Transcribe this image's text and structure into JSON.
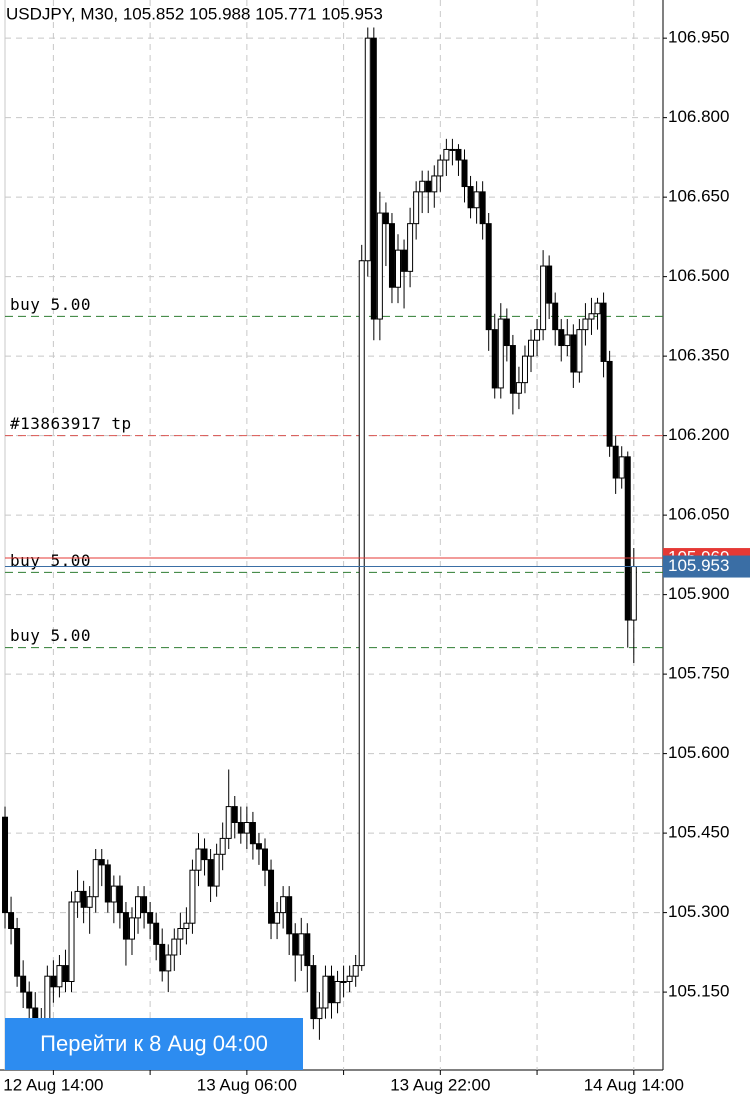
{
  "chart_data": {
    "type": "candlestick",
    "title": "USDJPY, M30, 105.852 105.988 105.771 105.953",
    "candles": [
      [
        105.48,
        105.5,
        105.27,
        105.3
      ],
      [
        105.3,
        105.33,
        105.24,
        105.27
      ],
      [
        105.27,
        105.29,
        105.16,
        105.18
      ],
      [
        105.18,
        105.21,
        105.12,
        105.15
      ],
      [
        105.15,
        105.17,
        105.09,
        105.12
      ],
      [
        105.12,
        105.15,
        105.05,
        105.07
      ],
      [
        105.07,
        105.12,
        105.04,
        105.09
      ],
      [
        105.09,
        105.2,
        105.07,
        105.18
      ],
      [
        105.18,
        105.21,
        105.13,
        105.16
      ],
      [
        105.16,
        105.22,
        105.14,
        105.2
      ],
      [
        105.2,
        105.23,
        105.15,
        105.17
      ],
      [
        105.17,
        105.34,
        105.15,
        105.32
      ],
      [
        105.32,
        105.38,
        105.29,
        105.34
      ],
      [
        105.34,
        105.36,
        105.28,
        105.31
      ],
      [
        105.31,
        105.35,
        105.26,
        105.33
      ],
      [
        105.33,
        105.42,
        105.3,
        105.4
      ],
      [
        105.4,
        105.42,
        105.35,
        105.39
      ],
      [
        105.39,
        105.4,
        105.3,
        105.32
      ],
      [
        105.32,
        105.37,
        105.28,
        105.35
      ],
      [
        105.35,
        105.37,
        105.27,
        105.3
      ],
      [
        105.3,
        105.32,
        105.2,
        105.25
      ],
      [
        105.25,
        105.31,
        105.22,
        105.29
      ],
      [
        105.29,
        105.35,
        105.26,
        105.33
      ],
      [
        105.33,
        105.35,
        105.27,
        105.3
      ],
      [
        105.3,
        105.32,
        105.25,
        105.28
      ],
      [
        105.28,
        105.3,
        105.21,
        105.24
      ],
      [
        105.24,
        105.27,
        105.17,
        105.19
      ],
      [
        105.19,
        105.24,
        105.15,
        105.22
      ],
      [
        105.22,
        105.27,
        105.19,
        105.25
      ],
      [
        105.25,
        105.3,
        105.22,
        105.27
      ],
      [
        105.27,
        105.31,
        105.24,
        105.28
      ],
      [
        105.28,
        105.4,
        105.26,
        105.38
      ],
      [
        105.38,
        105.45,
        105.35,
        105.42
      ],
      [
        105.42,
        105.44,
        105.37,
        105.4
      ],
      [
        105.4,
        105.42,
        105.32,
        105.35
      ],
      [
        105.35,
        105.43,
        105.33,
        105.41
      ],
      [
        105.41,
        105.47,
        105.38,
        105.44
      ],
      [
        105.44,
        105.57,
        105.42,
        105.5
      ],
      [
        105.5,
        105.52,
        105.44,
        105.47
      ],
      [
        105.47,
        105.5,
        105.43,
        105.45
      ],
      [
        105.45,
        105.5,
        105.42,
        105.47
      ],
      [
        105.47,
        105.49,
        105.4,
        105.43
      ],
      [
        105.43,
        105.45,
        105.39,
        105.42
      ],
      [
        105.42,
        105.44,
        105.35,
        105.38
      ],
      [
        105.38,
        105.4,
        105.25,
        105.28
      ],
      [
        105.28,
        105.32,
        105.25,
        105.3
      ],
      [
        105.3,
        105.35,
        105.27,
        105.33
      ],
      [
        105.33,
        105.35,
        105.22,
        105.26
      ],
      [
        105.26,
        105.28,
        105.17,
        105.22
      ],
      [
        105.22,
        105.29,
        105.19,
        105.26
      ],
      [
        105.26,
        105.28,
        105.15,
        105.2
      ],
      [
        105.2,
        105.22,
        105.08,
        105.1
      ],
      [
        105.1,
        105.15,
        105.06,
        105.12
      ],
      [
        105.12,
        105.2,
        105.1,
        105.18
      ],
      [
        105.18,
        105.2,
        105.1,
        105.13
      ],
      [
        105.13,
        105.19,
        105.11,
        105.17
      ],
      [
        105.17,
        105.2,
        105.14,
        105.17
      ],
      [
        105.17,
        105.2,
        105.15,
        105.18
      ],
      [
        105.18,
        105.22,
        105.16,
        105.2
      ],
      [
        105.2,
        106.56,
        105.19,
        106.53
      ],
      [
        106.53,
        106.97,
        106.5,
        106.95
      ],
      [
        106.95,
        106.97,
        106.38,
        106.42
      ],
      [
        106.42,
        106.66,
        106.38,
        106.62
      ],
      [
        106.62,
        106.64,
        106.52,
        106.6
      ],
      [
        106.6,
        106.62,
        106.45,
        106.48
      ],
      [
        106.48,
        106.58,
        106.45,
        106.55
      ],
      [
        106.55,
        106.57,
        106.44,
        106.51
      ],
      [
        106.51,
        106.63,
        106.48,
        106.6
      ],
      [
        106.6,
        106.68,
        106.57,
        106.66
      ],
      [
        106.66,
        106.7,
        106.62,
        106.68
      ],
      [
        106.68,
        106.7,
        106.62,
        106.66
      ],
      [
        106.66,
        106.71,
        106.63,
        106.69
      ],
      [
        106.69,
        106.73,
        106.66,
        106.72
      ],
      [
        106.72,
        106.76,
        106.69,
        106.74
      ],
      [
        106.74,
        106.76,
        106.71,
        106.74
      ],
      [
        106.74,
        106.75,
        106.69,
        106.72
      ],
      [
        106.72,
        106.74,
        106.64,
        106.67
      ],
      [
        106.67,
        106.69,
        106.61,
        106.63
      ],
      [
        106.63,
        106.68,
        106.6,
        106.66
      ],
      [
        106.66,
        106.68,
        106.57,
        106.6
      ],
      [
        106.6,
        106.62,
        106.36,
        106.4
      ],
      [
        106.4,
        106.43,
        106.27,
        106.29
      ],
      [
        106.29,
        106.45,
        106.27,
        106.42
      ],
      [
        106.42,
        106.44,
        106.34,
        106.37
      ],
      [
        106.37,
        106.39,
        106.24,
        106.28
      ],
      [
        106.28,
        106.33,
        106.25,
        106.3
      ],
      [
        106.3,
        106.37,
        106.28,
        106.35
      ],
      [
        106.35,
        106.4,
        106.32,
        106.38
      ],
      [
        106.38,
        106.42,
        106.35,
        106.4
      ],
      [
        106.4,
        106.55,
        106.38,
        106.52
      ],
      [
        106.52,
        106.54,
        106.42,
        106.45
      ],
      [
        106.45,
        106.47,
        106.37,
        106.4
      ],
      [
        106.4,
        106.42,
        106.34,
        106.37
      ],
      [
        106.37,
        106.42,
        106.35,
        106.39
      ],
      [
        106.39,
        106.41,
        106.29,
        106.32
      ],
      [
        106.32,
        106.42,
        106.3,
        106.4
      ],
      [
        106.4,
        106.45,
        106.37,
        106.42
      ],
      [
        106.42,
        106.46,
        106.39,
        106.43
      ],
      [
        106.43,
        106.46,
        106.4,
        106.45
      ],
      [
        106.45,
        106.47,
        106.31,
        106.34
      ],
      [
        106.34,
        106.36,
        106.16,
        106.18
      ],
      [
        106.18,
        106.2,
        106.09,
        106.12
      ],
      [
        106.12,
        106.18,
        106.1,
        106.16
      ],
      [
        106.16,
        106.17,
        105.8,
        105.852
      ],
      [
        105.852,
        105.988,
        105.771,
        105.953
      ]
    ],
    "xlim": [
      -0.83,
      108.83
    ],
    "xticks": [
      {
        "value": 8,
        "label": "12 Aug 14:00"
      },
      {
        "value": 24,
        "label": null
      },
      {
        "value": 40,
        "label": "13 Aug 06:00"
      },
      {
        "value": 56,
        "label": null
      },
      {
        "value": 72,
        "label": "13 Aug 22:00"
      },
      {
        "value": 88,
        "label": null
      },
      {
        "value": 104,
        "label": "14 Aug 14:00"
      }
    ],
    "ylim": [
      105.003,
      107.022
    ],
    "yticks": [
      {
        "value": 106.95,
        "label": "106.950"
      },
      {
        "value": 106.8,
        "label": "106.800"
      },
      {
        "value": 106.65,
        "label": "106.650"
      },
      {
        "value": 106.5,
        "label": "106.500"
      },
      {
        "value": 106.35,
        "label": "106.350"
      },
      {
        "value": 106.2,
        "label": "106.200"
      },
      {
        "value": 106.05,
        "label": "106.050"
      },
      {
        "value": 105.9,
        "label": "105.900"
      },
      {
        "value": 105.75,
        "label": "105.750"
      },
      {
        "value": 105.6,
        "label": "105.600"
      },
      {
        "value": 105.45,
        "label": "105.450"
      },
      {
        "value": 105.3,
        "label": "105.300"
      },
      {
        "value": 105.15,
        "label": "105.150"
      }
    ],
    "grid": true,
    "levels": [
      {
        "label": "buy 5.00",
        "value": 106.425,
        "color": "#2e7d32"
      },
      {
        "label": "#13863917 tp",
        "value": 106.2,
        "color": "#d9534f"
      },
      {
        "label": "buy 5.00",
        "value": 105.942,
        "color": "#2e7d32"
      },
      {
        "label": "buy 5.00",
        "value": 105.8,
        "color": "#2e7d32"
      }
    ],
    "ask": {
      "value": 105.969,
      "color": "#e53935"
    },
    "bid": {
      "value": 105.953,
      "color": "#3a6ea5"
    }
  },
  "button": {
    "label": "Перейти к 8 Aug 04:00"
  }
}
